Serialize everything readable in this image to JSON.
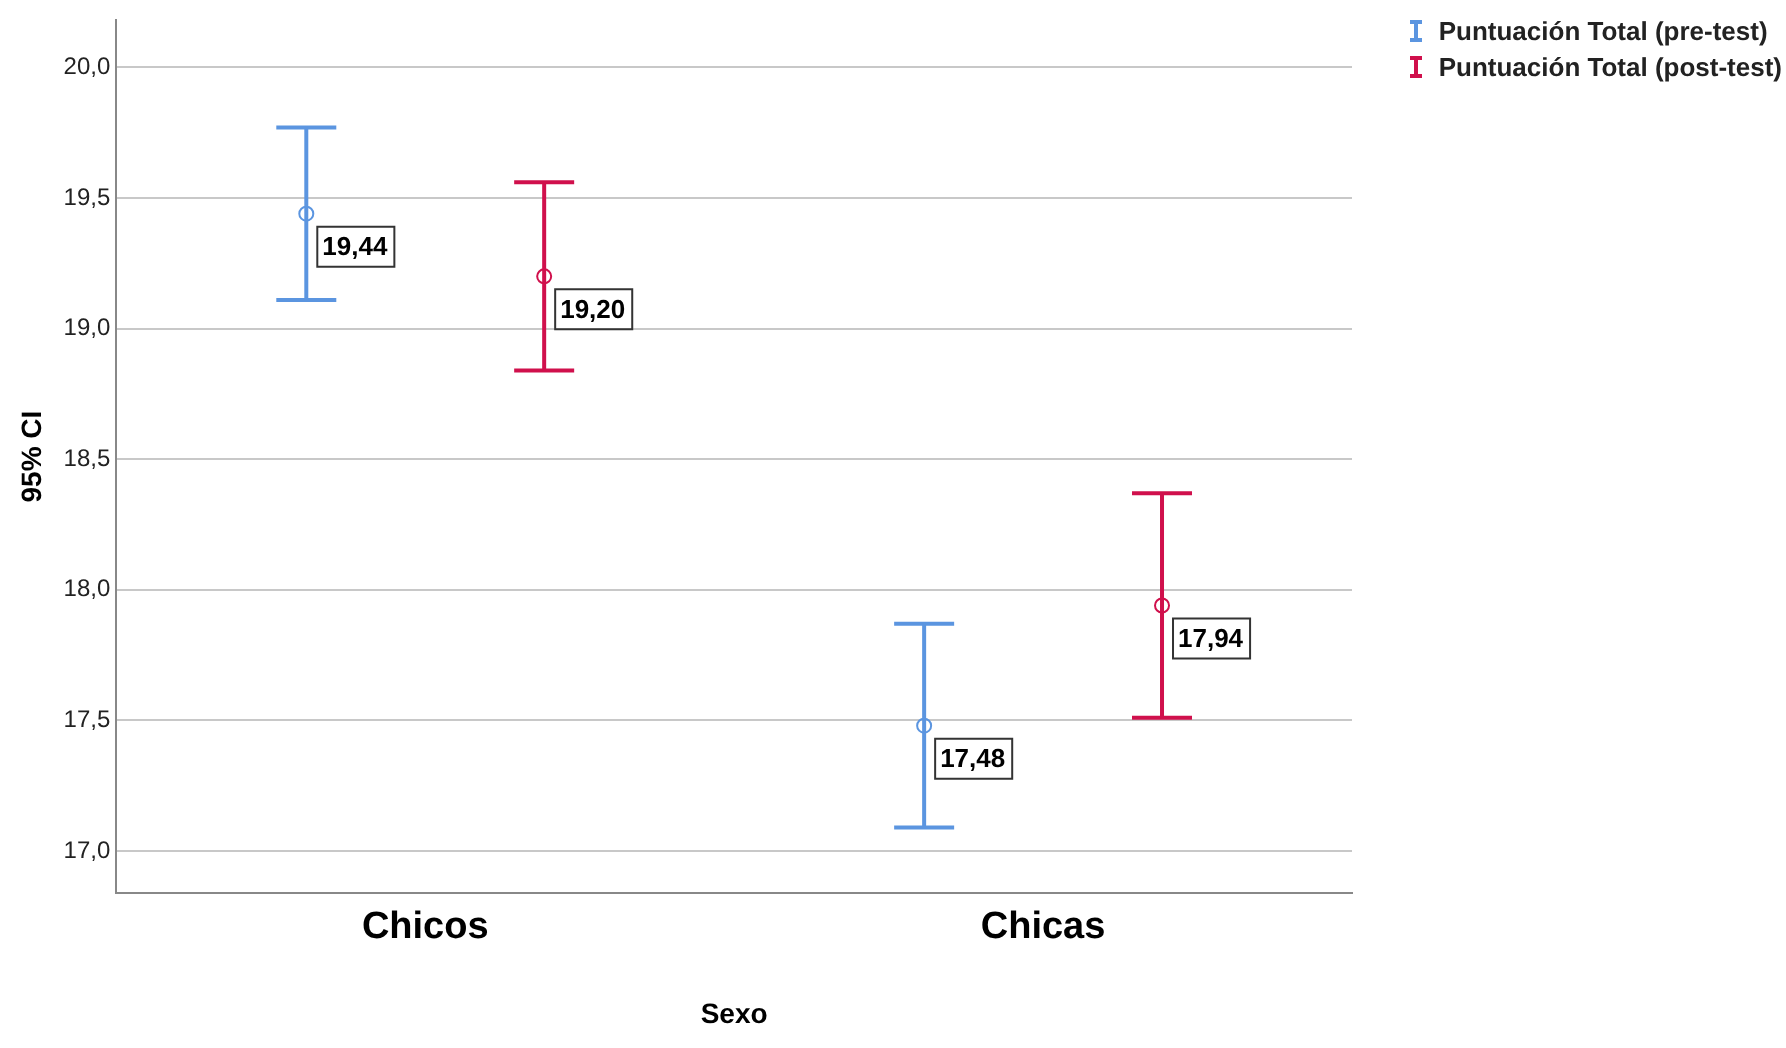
{
  "chart_data": {
    "type": "scatter",
    "xlabel": "Sexo",
    "ylabel": "95% CI",
    "categories": [
      "Chicos",
      "Chicas"
    ],
    "series": [
      {
        "name": "Puntuación Total (pre-test)",
        "color": "#5b95e0",
        "values": [
          19.44,
          17.48
        ],
        "errors": [
          0.33,
          0.39
        ],
        "value_labels": [
          "19,44",
          "17,48"
        ]
      },
      {
        "name": "Puntuación Total (post-test)",
        "color": "#d0104c",
        "values": [
          19.2,
          17.94
        ],
        "errors": [
          0.36,
          0.43
        ],
        "value_labels": [
          "19,20",
          "17,94"
        ]
      }
    ],
    "ylim": [
      16.84,
      20.18
    ],
    "yticks": [
      {
        "value": 17,
        "label": "17,0"
      },
      {
        "value": 17.5,
        "label": "17,5"
      },
      {
        "value": 18,
        "label": "18,0"
      },
      {
        "value": 18.5,
        "label": "18,5"
      },
      {
        "value": 19,
        "label": "19,0"
      },
      {
        "value": 19.5,
        "label": "19,5"
      },
      {
        "value": 20,
        "label": "20,0"
      }
    ],
    "grid": "y",
    "legend": "top right",
    "marker": "circle"
  }
}
